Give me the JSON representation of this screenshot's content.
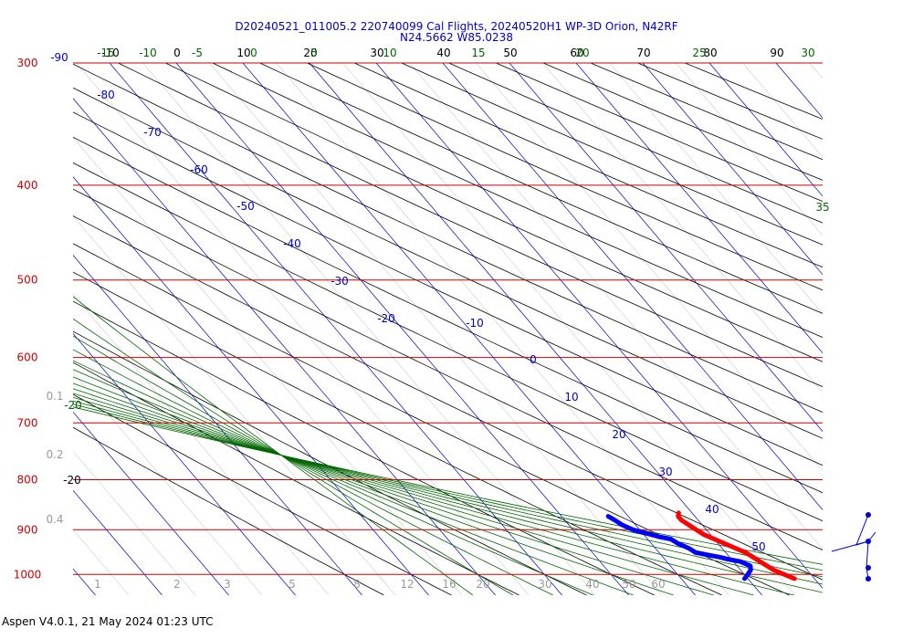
{
  "chart_data": {
    "type": "skew-t",
    "title": "D20240521_011005.2 220740099 Cal Flights, 20240520H1 WP-3D Orion, N42RF",
    "subtitle": "N24.5662 W85.0238",
    "pressure_levels": [
      300,
      400,
      500,
      600,
      700,
      800,
      900,
      1000
    ],
    "temperature_ticks": [
      -10,
      0,
      10,
      20,
      30,
      40,
      50,
      60,
      70,
      80,
      90
    ],
    "isotherm_labels": [
      -90,
      -80,
      -70,
      -60,
      -50,
      -40,
      -30,
      -20,
      -10,
      0,
      10,
      20,
      30,
      40,
      50
    ],
    "theta_e_top_labels": [
      -15,
      -10,
      -5,
      0,
      5,
      10,
      15,
      20,
      25,
      30
    ],
    "theta_e_side_labels": [
      "35",
      "-20"
    ],
    "mixing_ratio_labels": [
      "1",
      "2",
      "3",
      "5",
      "8",
      "12",
      "16",
      "20",
      "30",
      "40",
      "50",
      "60"
    ],
    "mixing_ratio_side_labels": [
      "0.1",
      "0.2",
      "0.4"
    ],
    "dry_adiabat_side_label": "-20",
    "temperature_series": {
      "name": "",
      "color": "#ff0000",
      "points": [
        [
          1010,
          27.0
        ],
        [
          1000,
          26.0
        ],
        [
          990,
          25.0
        ],
        [
          980,
          24.5
        ],
        [
          970,
          24.0
        ],
        [
          960,
          23.5
        ],
        [
          950,
          23.0
        ],
        [
          940,
          22.0
        ],
        [
          930,
          21.0
        ],
        [
          920,
          20.0
        ],
        [
          910,
          19.0
        ],
        [
          900,
          18.5
        ],
        [
          890,
          18.0
        ],
        [
          880,
          17.5
        ],
        [
          872,
          17.5
        ],
        [
          865,
          18.0
        ]
      ]
    },
    "dewpoint_series": {
      "name": "",
      "color": "#0000ff",
      "points": [
        [
          1010,
          19.5
        ],
        [
          1000,
          20.5
        ],
        [
          990,
          21.5
        ],
        [
          980,
          22.0
        ],
        [
          970,
          21.0
        ],
        [
          965,
          19.5
        ],
        [
          960,
          18.5
        ],
        [
          955,
          17.0
        ],
        [
          950,
          15.5
        ],
        [
          940,
          15.0
        ],
        [
          930,
          14.0
        ],
        [
          920,
          13.5
        ],
        [
          915,
          12.0
        ],
        [
          910,
          11.0
        ],
        [
          905,
          10.0
        ],
        [
          900,
          9.0
        ],
        [
          895,
          8.5
        ],
        [
          890,
          8.0
        ],
        [
          880,
          7.5
        ],
        [
          872,
          7.0
        ]
      ]
    },
    "colors": {
      "isobar": "#cc0000",
      "isotherm": "#0000cc",
      "dry_adiabat": "#000000",
      "moist_adiabat": "#006600",
      "mixing_ratio": "#999999",
      "title": "#0000cc",
      "pressure_label": "#cc0000"
    }
  },
  "footer": {
    "text": "Aspen V4.0.1, 21 May 2024  01:23 UTC"
  }
}
